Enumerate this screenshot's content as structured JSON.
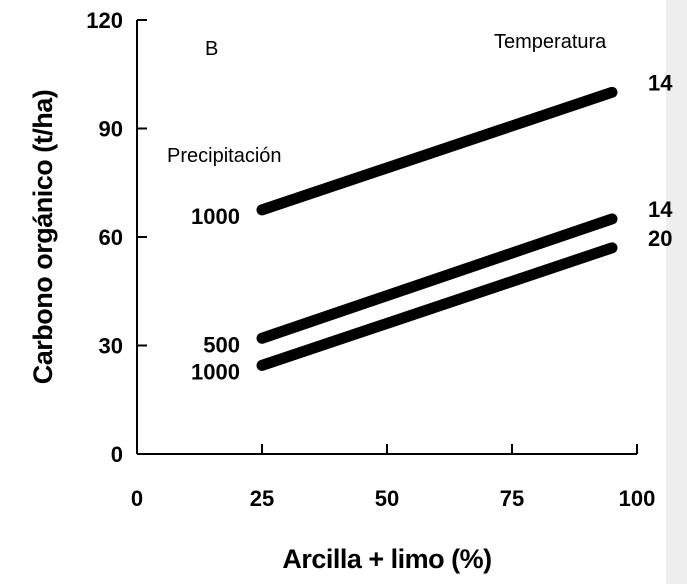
{
  "chart_data": {
    "type": "line",
    "panel_label": "B",
    "xlabel": "Arcilla + limo (%)",
    "ylabel": "Carbono orgánico (t/ha)",
    "xlim": [
      0,
      100
    ],
    "ylim": [
      0,
      120
    ],
    "xticks": [
      0,
      25,
      50,
      75,
      100
    ],
    "yticks": [
      0,
      30,
      60,
      90,
      120
    ],
    "grid": false,
    "annotations": {
      "precipitation_header": "Precipitación",
      "temperature_header": "Temperatura"
    },
    "series": [
      {
        "precipitation": "1000",
        "temperature": "14",
        "x": [
          25,
          95
        ],
        "y": [
          67.5,
          100
        ]
      },
      {
        "precipitation": "500",
        "temperature": "14",
        "x": [
          25,
          95
        ],
        "y": [
          32,
          65
        ]
      },
      {
        "precipitation": "1000",
        "temperature": "20",
        "x": [
          25,
          95
        ],
        "y": [
          24.5,
          57
        ]
      }
    ]
  },
  "colors": {
    "line": "#000000",
    "background": "#ffffff",
    "right_strip": "#eeeeee"
  }
}
